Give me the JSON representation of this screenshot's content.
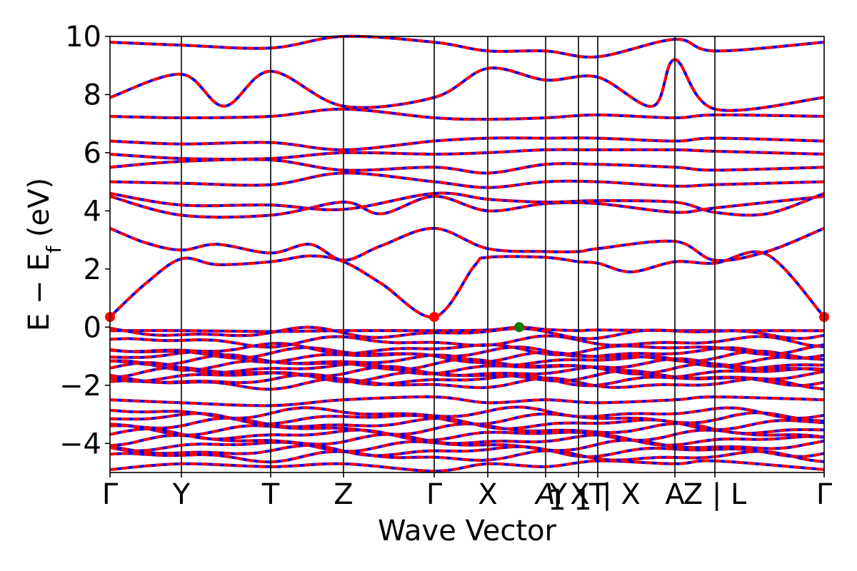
{
  "chart_data": {
    "type": "line",
    "title": "",
    "xlabel": "Wave Vector",
    "ylabel": {
      "main": "E − E",
      "subscript": "f",
      "unit": " (eV)"
    },
    "ylim": [
      -5,
      10
    ],
    "yticks": [
      -4,
      -2,
      0,
      2,
      4,
      6,
      8,
      10
    ],
    "ytick_labels": [
      "−4",
      "−2",
      "0",
      "2",
      "4",
      "6",
      "8",
      "10"
    ],
    "xlim": [
      0,
      10
    ],
    "high_symmetry_points": [
      {
        "label": "Γ",
        "x": 0.0
      },
      {
        "label": "Y",
        "x": 1.0
      },
      {
        "label": "T",
        "x": 2.25
      },
      {
        "label": "Z",
        "x": 3.27
      },
      {
        "label": "Γ",
        "x": 4.54
      },
      {
        "label": "X",
        "x": 5.29
      },
      {
        "label": "A",
        "x": 6.1
      },
      {
        "label": "Y",
        "x": 6.28
      },
      {
        "label": "1",
        "x": 6.26
      },
      {
        "label": "X",
        "x": 6.58
      },
      {
        "label": "1",
        "x": 6.62
      },
      {
        "label": "T",
        "x": 6.83
      },
      {
        "label": "| X",
        "x": 7.16
      },
      {
        "label": "A",
        "x": 7.91
      },
      {
        "label": "Z | L",
        "x": 8.47
      },
      {
        "label": "Γ",
        "x": 10.0
      }
    ],
    "vertical_lines_x": [
      1.0,
      2.25,
      3.27,
      4.54,
      5.29,
      6.1,
      6.56,
      6.83,
      7.91,
      8.47
    ],
    "band_style": {
      "spin_up_color": "#ff0000",
      "spin_down_color": "#0000ff",
      "note_dashed": true
    },
    "markers": [
      {
        "name": "cbm-marker-1",
        "x": 0.0,
        "y": 0.35,
        "color": "#ff0000"
      },
      {
        "name": "cbm-marker-2",
        "x": 4.54,
        "y": 0.35,
        "color": "#ff0000"
      },
      {
        "name": "cbm-marker-3",
        "x": 10.0,
        "y": 0.35,
        "color": "#ff0000"
      },
      {
        "name": "vbm-marker",
        "x": 5.73,
        "y": 0.0,
        "color": "#008000"
      }
    ],
    "series": [
      {
        "values_top_valence": [
          [
            0,
            -0.12
          ],
          [
            1,
            -0.12
          ],
          [
            2.25,
            -0.15
          ],
          [
            3.27,
            -0.12
          ],
          [
            4.54,
            -0.12
          ],
          [
            5.29,
            -0.1
          ],
          [
            5.73,
            0.0
          ],
          [
            6.1,
            -0.08
          ],
          [
            6.56,
            -0.12
          ],
          [
            6.83,
            -0.1
          ],
          [
            7.91,
            -0.12
          ],
          [
            8.47,
            -0.12
          ],
          [
            10,
            -0.12
          ]
        ]
      },
      {
        "values_conduction_1": [
          [
            0,
            0.35
          ],
          [
            0.5,
            1.5
          ],
          [
            1,
            2.35
          ],
          [
            1.5,
            2.15
          ],
          [
            2.25,
            2.25
          ],
          [
            2.8,
            2.45
          ],
          [
            3.27,
            2.25
          ],
          [
            3.8,
            1.5
          ],
          [
            4.54,
            0.35
          ],
          [
            5.1,
            2.1
          ],
          [
            5.29,
            2.4
          ],
          [
            6.1,
            2.4
          ],
          [
            6.56,
            2.25
          ],
          [
            6.83,
            2.2
          ],
          [
            7.3,
            1.9
          ],
          [
            7.91,
            2.25
          ],
          [
            8.47,
            2.2
          ],
          [
            9.2,
            2.5
          ],
          [
            10,
            0.35
          ]
        ]
      },
      {
        "values_conduction_2": [
          [
            0,
            3.4
          ],
          [
            0.5,
            2.9
          ],
          [
            1,
            2.65
          ],
          [
            1.5,
            2.85
          ],
          [
            2.25,
            2.55
          ],
          [
            2.8,
            2.85
          ],
          [
            3.27,
            2.3
          ],
          [
            3.8,
            2.8
          ],
          [
            4.54,
            3.4
          ],
          [
            5.29,
            2.7
          ],
          [
            6.1,
            2.6
          ],
          [
            6.56,
            2.6
          ],
          [
            6.83,
            2.7
          ],
          [
            7.91,
            2.95
          ],
          [
            8.47,
            2.3
          ],
          [
            9.2,
            2.6
          ],
          [
            10,
            3.4
          ]
        ]
      },
      {
        "values_band_4a": [
          [
            0,
            4.5
          ],
          [
            1,
            3.85
          ],
          [
            2.25,
            3.85
          ],
          [
            3.27,
            4.3
          ],
          [
            3.8,
            3.9
          ],
          [
            4.54,
            4.5
          ],
          [
            5.29,
            4.0
          ],
          [
            6.1,
            4.25
          ],
          [
            6.83,
            4.25
          ],
          [
            7.91,
            3.95
          ],
          [
            8.47,
            4.1
          ],
          [
            10,
            4.5
          ]
        ]
      },
      {
        "values_band_4b": [
          [
            0,
            4.6
          ],
          [
            1,
            4.2
          ],
          [
            2.25,
            4.2
          ],
          [
            3.27,
            4.05
          ],
          [
            4.54,
            4.6
          ],
          [
            5.29,
            4.4
          ],
          [
            6.1,
            4.3
          ],
          [
            6.83,
            4.35
          ],
          [
            7.91,
            4.3
          ],
          [
            8.47,
            3.95
          ],
          [
            9.2,
            3.9
          ],
          [
            10,
            4.6
          ]
        ]
      },
      {
        "values_band_5a": [
          [
            0,
            5.0
          ],
          [
            1,
            4.95
          ],
          [
            2.25,
            4.9
          ],
          [
            3.27,
            5.3
          ],
          [
            4.54,
            5.0
          ],
          [
            5.29,
            4.8
          ],
          [
            6.1,
            5.0
          ],
          [
            6.83,
            5.0
          ],
          [
            7.91,
            4.85
          ],
          [
            8.47,
            4.9
          ],
          [
            10,
            5.0
          ]
        ]
      },
      {
        "values_band_5b": [
          [
            0,
            5.5
          ],
          [
            1,
            5.7
          ],
          [
            2.25,
            5.75
          ],
          [
            3.27,
            5.4
          ],
          [
            4.54,
            5.5
          ],
          [
            5.29,
            5.3
          ],
          [
            6.1,
            5.6
          ],
          [
            6.83,
            5.6
          ],
          [
            7.91,
            5.5
          ],
          [
            8.47,
            5.4
          ],
          [
            10,
            5.5
          ]
        ]
      },
      {
        "values_band_6a": [
          [
            0,
            5.95
          ],
          [
            1,
            5.8
          ],
          [
            2.25,
            5.8
          ],
          [
            3.27,
            6.0
          ],
          [
            4.54,
            5.95
          ],
          [
            5.29,
            6.0
          ],
          [
            6.1,
            6.1
          ],
          [
            6.83,
            6.1
          ],
          [
            7.91,
            6.1
          ],
          [
            8.47,
            6.05
          ],
          [
            10,
            5.95
          ]
        ]
      },
      {
        "values_band_6b": [
          [
            0,
            6.4
          ],
          [
            1,
            6.3
          ],
          [
            2.25,
            6.35
          ],
          [
            3.27,
            6.1
          ],
          [
            4.54,
            6.4
          ],
          [
            5.29,
            6.5
          ],
          [
            6.1,
            6.5
          ],
          [
            6.83,
            6.5
          ],
          [
            7.91,
            6.4
          ],
          [
            8.47,
            6.5
          ],
          [
            10,
            6.4
          ]
        ]
      },
      {
        "values_band_7": [
          [
            0,
            7.25
          ],
          [
            1,
            7.2
          ],
          [
            2.25,
            7.25
          ],
          [
            3.27,
            7.5
          ],
          [
            4.54,
            7.2
          ],
          [
            5.29,
            7.15
          ],
          [
            6.1,
            7.2
          ],
          [
            6.83,
            7.3
          ],
          [
            7.91,
            7.2
          ],
          [
            8.47,
            7.3
          ],
          [
            10,
            7.25
          ]
        ]
      },
      {
        "values_band_8": [
          [
            0,
            7.9
          ],
          [
            1,
            8.7
          ],
          [
            1.6,
            7.6
          ],
          [
            2.25,
            8.8
          ],
          [
            3.27,
            7.6
          ],
          [
            4.54,
            7.9
          ],
          [
            5.29,
            8.9
          ],
          [
            6.1,
            8.5
          ],
          [
            6.83,
            8.6
          ],
          [
            7.6,
            7.6
          ],
          [
            7.91,
            9.2
          ],
          [
            8.47,
            7.5
          ],
          [
            10,
            7.9
          ]
        ]
      },
      {
        "values_band_9": [
          [
            0,
            9.8
          ],
          [
            1,
            9.7
          ],
          [
            2.25,
            9.6
          ],
          [
            3.27,
            10.0
          ],
          [
            4.54,
            9.8
          ],
          [
            5.29,
            9.5
          ],
          [
            6.1,
            9.5
          ],
          [
            6.83,
            9.3
          ],
          [
            7.91,
            9.9
          ],
          [
            8.47,
            9.5
          ],
          [
            10,
            9.8
          ]
        ]
      },
      {
        "values_valence_deep_1": [
          [
            0,
            -2.5
          ],
          [
            1,
            -2.6
          ],
          [
            2.25,
            -2.7
          ],
          [
            3.27,
            -2.5
          ],
          [
            4.54,
            -2.4
          ],
          [
            5.29,
            -2.6
          ],
          [
            6.1,
            -2.5
          ],
          [
            6.83,
            -2.6
          ],
          [
            7.91,
            -2.5
          ],
          [
            8.47,
            -2.4
          ],
          [
            10,
            -2.5
          ]
        ]
      },
      {
        "values_valence_deep_2": [
          [
            0,
            -4.9
          ],
          [
            1,
            -4.7
          ],
          [
            2.25,
            -4.8
          ],
          [
            3.27,
            -4.7
          ],
          [
            4.54,
            -4.95
          ],
          [
            5.29,
            -4.7
          ],
          [
            6.1,
            -4.8
          ],
          [
            6.83,
            -4.6
          ],
          [
            7.91,
            -4.7
          ],
          [
            8.47,
            -4.6
          ],
          [
            10,
            -4.9
          ]
        ]
      }
    ]
  }
}
